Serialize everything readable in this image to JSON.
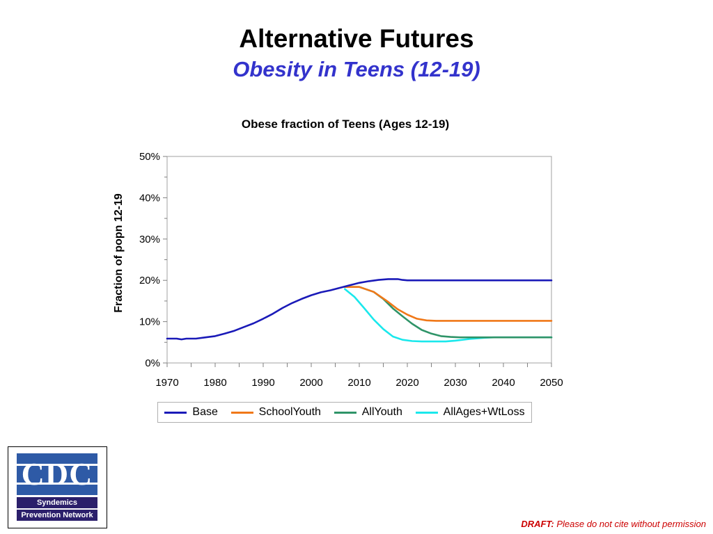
{
  "slide": {
    "title": "Alternative Futures",
    "subtitle": "Obesity in Teens (12-19)"
  },
  "chart_data": {
    "type": "line",
    "title": "Obese fraction of Teens (Ages 12-19)",
    "ylabel": "Fraction of popn 12-19",
    "xlabel": "",
    "xlim": [
      1970,
      2050
    ],
    "ylim": [
      0,
      0.5
    ],
    "x_ticks": [
      "1970",
      "1980",
      "1990",
      "2000",
      "2010",
      "2020",
      "2030",
      "2040",
      "2050"
    ],
    "y_ticks": [
      "0%",
      "10%",
      "20%",
      "30%",
      "40%",
      "50%"
    ],
    "grid": false,
    "legend_position": "bottom",
    "series": [
      {
        "name": "Base",
        "color": "#1a1ab8",
        "points": [
          [
            1970,
            0.059
          ],
          [
            1972,
            0.059
          ],
          [
            1973,
            0.057
          ],
          [
            1974,
            0.059
          ],
          [
            1976,
            0.059
          ],
          [
            1978,
            0.062
          ],
          [
            1980,
            0.065
          ],
          [
            1982,
            0.071
          ],
          [
            1984,
            0.078
          ],
          [
            1986,
            0.087
          ],
          [
            1988,
            0.096
          ],
          [
            1990,
            0.107
          ],
          [
            1992,
            0.119
          ],
          [
            1994,
            0.133
          ],
          [
            1996,
            0.145
          ],
          [
            1998,
            0.155
          ],
          [
            2000,
            0.164
          ],
          [
            2002,
            0.171
          ],
          [
            2004,
            0.176
          ],
          [
            2006,
            0.182
          ],
          [
            2008,
            0.188
          ],
          [
            2010,
            0.194
          ],
          [
            2012,
            0.198
          ],
          [
            2014,
            0.201
          ],
          [
            2016,
            0.203
          ],
          [
            2018,
            0.203
          ],
          [
            2019,
            0.201
          ],
          [
            2020,
            0.2
          ],
          [
            2050,
            0.2
          ]
        ]
      },
      {
        "name": "SchoolYouth",
        "color": "#f07818",
        "points": [
          [
            2007,
            0.184
          ],
          [
            2010,
            0.184
          ],
          [
            2013,
            0.172
          ],
          [
            2016,
            0.148
          ],
          [
            2018,
            0.13
          ],
          [
            2020,
            0.117
          ],
          [
            2022,
            0.107
          ],
          [
            2024,
            0.103
          ],
          [
            2026,
            0.102
          ],
          [
            2050,
            0.102
          ]
        ]
      },
      {
        "name": "AllYouth",
        "color": "#2f9468",
        "points": [
          [
            2007,
            0.184
          ],
          [
            2010,
            0.184
          ],
          [
            2013,
            0.172
          ],
          [
            2015,
            0.155
          ],
          [
            2017,
            0.132
          ],
          [
            2019,
            0.113
          ],
          [
            2021,
            0.095
          ],
          [
            2023,
            0.08
          ],
          [
            2025,
            0.071
          ],
          [
            2027,
            0.065
          ],
          [
            2029,
            0.063
          ],
          [
            2031,
            0.062
          ],
          [
            2050,
            0.062
          ]
        ]
      },
      {
        "name": "AllAges+WtLoss",
        "color": "#1ae8ec",
        "points": [
          [
            2007,
            0.179
          ],
          [
            2009,
            0.16
          ],
          [
            2011,
            0.133
          ],
          [
            2013,
            0.105
          ],
          [
            2015,
            0.082
          ],
          [
            2017,
            0.064
          ],
          [
            2019,
            0.056
          ],
          [
            2021,
            0.053
          ],
          [
            2023,
            0.052
          ],
          [
            2026,
            0.052
          ],
          [
            2028,
            0.052
          ],
          [
            2030,
            0.054
          ],
          [
            2033,
            0.058
          ],
          [
            2036,
            0.061
          ],
          [
            2038,
            0.062
          ],
          [
            2050,
            0.062
          ]
        ]
      }
    ]
  },
  "logo": {
    "cdc_text": "CDC",
    "band_line_1": "Syndemics",
    "band_line_2": "Prevention Network"
  },
  "footer": {
    "draft_label": "DRAFT:",
    "draft_note": "Please do not cite without permission"
  }
}
